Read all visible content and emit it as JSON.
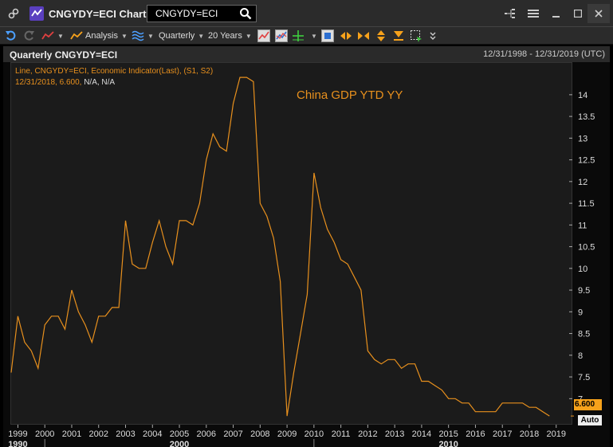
{
  "window": {
    "title": "CNGYDY=ECI Chart",
    "ric_value": "CNGYDY=ECI"
  },
  "toolbar": {
    "analysis_label": "Analysis",
    "interval_label": "Quarterly",
    "range_label": "20 Years"
  },
  "panel": {
    "title": "Quarterly CNGYDY=ECI",
    "date_range": "12/31/1998 - 12/31/2019 (UTC)",
    "legend_series": "Line, CNGYDY=ECI, Economic Indicator(Last), (S1, S2)",
    "legend_values_date": "12/31/2018, 6.600,",
    "legend_values_na": "N/A, N/A",
    "annotation": "China GDP YTD YY",
    "last_value": "6.600",
    "auto_label": "Auto"
  },
  "colors": {
    "series": "#e8901d",
    "badge": "#f7a21b"
  },
  "chart_data": {
    "type": "line",
    "series": [
      {
        "name": "CNGYDY=ECI",
        "x_start": 1998.75,
        "x_step": 0.25,
        "values": [
          7.6,
          8.9,
          8.3,
          8.1,
          7.7,
          8.7,
          8.9,
          8.9,
          8.6,
          9.5,
          9.0,
          8.7,
          8.3,
          8.9,
          8.9,
          9.1,
          9.1,
          11.1,
          10.1,
          10.0,
          10.0,
          10.6,
          11.1,
          10.5,
          10.1,
          11.1,
          11.1,
          11.0,
          11.5,
          12.5,
          13.1,
          12.8,
          12.7,
          13.8,
          14.4,
          14.4,
          14.3,
          11.5,
          11.2,
          10.7,
          9.7,
          6.6,
          7.6,
          8.5,
          9.4,
          12.2,
          11.4,
          10.9,
          10.6,
          10.2,
          10.1,
          9.8,
          9.5,
          8.1,
          7.9,
          7.8,
          7.9,
          7.9,
          7.7,
          7.8,
          7.8,
          7.4,
          7.4,
          7.3,
          7.2,
          7.0,
          7.0,
          6.9,
          6.9,
          6.7,
          6.7,
          6.7,
          6.7,
          6.9,
          6.9,
          6.9,
          6.9,
          6.8,
          6.8,
          6.7,
          6.6
        ]
      }
    ],
    "x_ticks": [
      "1999",
      "2000",
      "2001",
      "2002",
      "2003",
      "2004",
      "2005",
      "2006",
      "2007",
      "2008",
      "2009",
      "2010",
      "2011",
      "2012",
      "2013",
      "2014",
      "2015",
      "2016",
      "2017",
      "2018",
      "2019"
    ],
    "x_major_labels": [
      "1990",
      "2000",
      "2010"
    ],
    "y_ticks": [
      "7",
      "7.5",
      "8",
      "8.5",
      "9",
      "9.5",
      "10",
      "10.5",
      "11",
      "11.5",
      "12",
      "12.5",
      "13",
      "13.5",
      "14"
    ],
    "xlim": [
      1998.75,
      2019.6
    ],
    "ylim": [
      6.4,
      14.75
    ],
    "grid": false,
    "last_value": 6.6
  }
}
